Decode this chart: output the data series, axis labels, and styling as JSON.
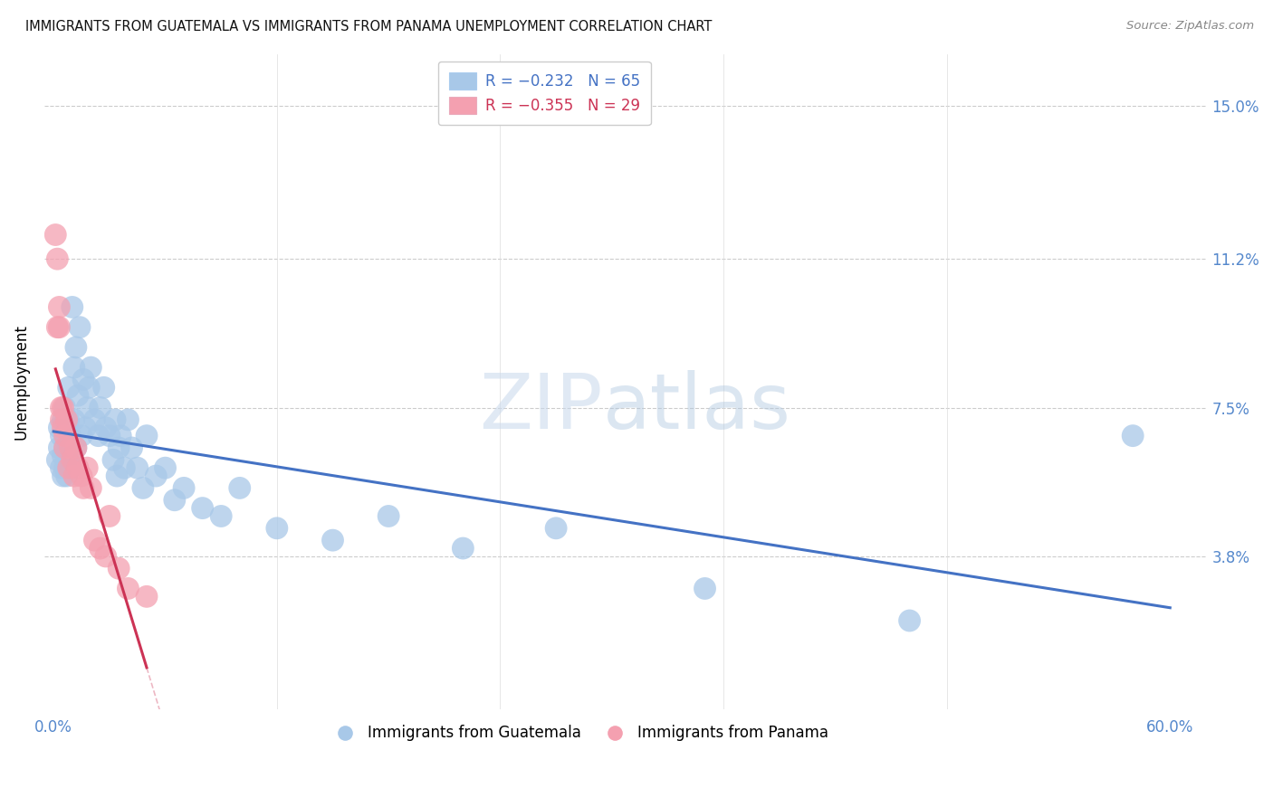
{
  "title": "IMMIGRANTS FROM GUATEMALA VS IMMIGRANTS FROM PANAMA UNEMPLOYMENT CORRELATION CHART",
  "source": "Source: ZipAtlas.com",
  "ylabel": "Unemployment",
  "yticks": [
    0.038,
    0.075,
    0.112,
    0.15
  ],
  "ytick_labels": [
    "3.8%",
    "7.5%",
    "11.2%",
    "15.0%"
  ],
  "xlim": [
    0.0,
    0.6
  ],
  "ylim": [
    0.0,
    0.163
  ],
  "watermark_zip": "ZIP",
  "watermark_atlas": "atlas",
  "legend_r1": "R = −0.232",
  "legend_n1": "N = 65",
  "legend_r2": "R = −0.355",
  "legend_n2": "N = 29",
  "blue_scatter_color": "#a8c8e8",
  "pink_scatter_color": "#f4a0b0",
  "blue_line_color": "#4472c4",
  "pink_line_color": "#cc3355",
  "axis_tick_color": "#5588cc",
  "grid_color": "#cccccc",
  "guatemala_x": [
    0.002,
    0.003,
    0.003,
    0.004,
    0.004,
    0.005,
    0.005,
    0.005,
    0.006,
    0.006,
    0.006,
    0.007,
    0.007,
    0.007,
    0.008,
    0.008,
    0.008,
    0.009,
    0.009,
    0.01,
    0.01,
    0.011,
    0.011,
    0.012,
    0.012,
    0.013,
    0.014,
    0.015,
    0.016,
    0.017,
    0.018,
    0.019,
    0.02,
    0.022,
    0.024,
    0.025,
    0.027,
    0.028,
    0.03,
    0.032,
    0.033,
    0.034,
    0.035,
    0.036,
    0.038,
    0.04,
    0.042,
    0.045,
    0.048,
    0.05,
    0.055,
    0.06,
    0.065,
    0.07,
    0.08,
    0.09,
    0.1,
    0.12,
    0.15,
    0.18,
    0.22,
    0.27,
    0.35,
    0.46,
    0.58
  ],
  "guatemala_y": [
    0.062,
    0.065,
    0.07,
    0.06,
    0.068,
    0.063,
    0.058,
    0.072,
    0.06,
    0.065,
    0.075,
    0.062,
    0.068,
    0.058,
    0.065,
    0.072,
    0.08,
    0.06,
    0.068,
    0.063,
    0.1,
    0.072,
    0.085,
    0.065,
    0.09,
    0.078,
    0.095,
    0.068,
    0.082,
    0.07,
    0.075,
    0.08,
    0.085,
    0.072,
    0.068,
    0.075,
    0.08,
    0.07,
    0.068,
    0.062,
    0.072,
    0.058,
    0.065,
    0.068,
    0.06,
    0.072,
    0.065,
    0.06,
    0.055,
    0.068,
    0.058,
    0.06,
    0.052,
    0.055,
    0.05,
    0.048,
    0.055,
    0.045,
    0.042,
    0.048,
    0.04,
    0.045,
    0.03,
    0.022,
    0.068
  ],
  "panama_x": [
    0.001,
    0.002,
    0.002,
    0.003,
    0.003,
    0.004,
    0.004,
    0.005,
    0.005,
    0.006,
    0.006,
    0.007,
    0.008,
    0.009,
    0.01,
    0.011,
    0.012,
    0.013,
    0.015,
    0.016,
    0.018,
    0.02,
    0.022,
    0.025,
    0.028,
    0.03,
    0.035,
    0.04,
    0.05
  ],
  "panama_y": [
    0.118,
    0.095,
    0.112,
    0.095,
    0.1,
    0.072,
    0.075,
    0.07,
    0.075,
    0.068,
    0.065,
    0.072,
    0.06,
    0.065,
    0.062,
    0.058,
    0.065,
    0.06,
    0.058,
    0.055,
    0.06,
    0.055,
    0.042,
    0.04,
    0.038,
    0.048,
    0.035,
    0.03,
    0.028
  ]
}
